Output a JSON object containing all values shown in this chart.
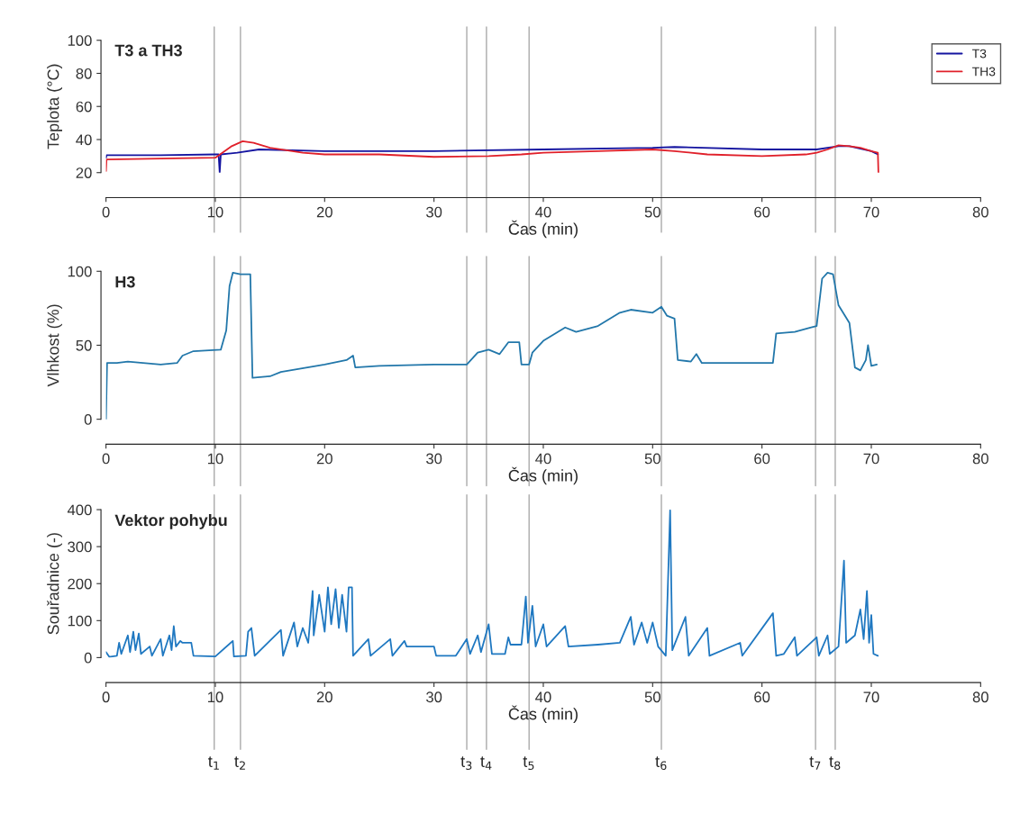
{
  "chart_data": [
    {
      "type": "line",
      "title": "T3 a TH3",
      "xlabel": "Čas (min)",
      "ylabel": "Teplota (°C)",
      "xlim": [
        0,
        80
      ],
      "xticks": [
        0,
        10,
        20,
        30,
        40,
        50,
        60,
        70,
        80
      ],
      "ylim": [
        20,
        100
      ],
      "yticks": [
        20,
        40,
        60,
        80,
        100
      ],
      "legend": "top right",
      "series": [
        {
          "name": "T3",
          "color": "#1414a0",
          "x": [
            0,
            0.05,
            5,
            10,
            10.3,
            10.4,
            10.5,
            12,
            14,
            20,
            30,
            40,
            50,
            52,
            60,
            65,
            67,
            68,
            70,
            70.6
          ],
          "values": [
            29,
            30.5,
            30.5,
            31,
            31,
            20,
            31,
            32,
            34,
            33,
            33,
            34,
            35,
            35.5,
            34,
            34,
            36,
            36,
            33,
            31
          ]
        },
        {
          "name": "TH3",
          "color": "#e0202a",
          "x": [
            0,
            0.05,
            10,
            11.5,
            12.5,
            13.5,
            15,
            18,
            20,
            25,
            30,
            35,
            38,
            40,
            45,
            50,
            52,
            55,
            60,
            64,
            65,
            66,
            67,
            68,
            69,
            70,
            70.6,
            70.65
          ],
          "values": [
            21,
            28,
            29,
            36,
            39,
            38,
            35,
            32,
            31,
            31,
            29.5,
            30,
            31,
            32,
            33,
            34,
            33,
            31,
            30,
            31,
            32,
            34,
            36.5,
            36,
            35,
            33,
            32,
            20
          ]
        }
      ],
      "ref_lines": [
        {
          "axis": "x",
          "value": 9.9,
          "color": "#aaaaaa"
        },
        {
          "axis": "x",
          "value": 12.3,
          "color": "#aaaaaa"
        },
        {
          "axis": "x",
          "value": 33.0,
          "color": "#aaaaaa"
        },
        {
          "axis": "x",
          "value": 34.8,
          "color": "#aaaaaa"
        },
        {
          "axis": "x",
          "value": 38.7,
          "color": "#aaaaaa"
        },
        {
          "axis": "x",
          "value": 50.8,
          "color": "#aaaaaa"
        },
        {
          "axis": "x",
          "value": 64.9,
          "color": "#aaaaaa"
        },
        {
          "axis": "x",
          "value": 66.7,
          "color": "#aaaaaa"
        }
      ]
    },
    {
      "type": "line",
      "title": "H3",
      "xlabel": "Čas (min)",
      "ylabel": "Vlhkost (%)",
      "xlim": [
        0,
        80
      ],
      "xticks": [
        0,
        10,
        20,
        30,
        40,
        50,
        60,
        70,
        80
      ],
      "ylim": [
        0,
        100
      ],
      "yticks": [
        0,
        50,
        100
      ],
      "series": [
        {
          "color": "#2277aa",
          "x": [
            0,
            0.1,
            1,
            2,
            5,
            6.5,
            7,
            8,
            10.5,
            11,
            11.3,
            11.6,
            12.3,
            13.2,
            13.4,
            15,
            16,
            20,
            22,
            22.6,
            22.8,
            25,
            30,
            33,
            34,
            35,
            36,
            36.8,
            37.8,
            38,
            38.7,
            39,
            40,
            42,
            43,
            45,
            47,
            48,
            50,
            50.8,
            51.3,
            52,
            52.3,
            53.5,
            54,
            54.5,
            57,
            61,
            61.3,
            63,
            64.5,
            65,
            65.5,
            66,
            66.5,
            67,
            68,
            68.5,
            69,
            69.5,
            69.7,
            70,
            70.5
          ],
          "values": [
            0,
            38,
            38,
            39,
            37,
            38,
            43,
            46,
            47,
            60,
            90,
            99,
            98,
            98,
            28,
            29,
            32,
            37,
            40,
            43,
            35,
            36,
            37,
            37,
            45,
            47,
            44,
            52,
            52,
            37,
            37,
            45,
            53,
            62,
            59,
            63,
            72,
            74,
            72,
            76,
            70,
            68,
            40,
            39,
            44,
            38,
            38,
            38,
            58,
            59,
            62,
            63,
            95,
            99,
            98,
            77,
            65,
            35,
            33,
            40,
            50,
            36,
            37
          ]
        }
      ],
      "ref_lines": [
        {
          "axis": "x",
          "value": 9.9,
          "color": "#aaaaaa"
        },
        {
          "axis": "x",
          "value": 12.3,
          "color": "#aaaaaa"
        },
        {
          "axis": "x",
          "value": 33.0,
          "color": "#aaaaaa"
        },
        {
          "axis": "x",
          "value": 34.8,
          "color": "#aaaaaa"
        },
        {
          "axis": "x",
          "value": 38.7,
          "color": "#aaaaaa"
        },
        {
          "axis": "x",
          "value": 50.8,
          "color": "#aaaaaa"
        },
        {
          "axis": "x",
          "value": 64.9,
          "color": "#aaaaaa"
        },
        {
          "axis": "x",
          "value": 66.7,
          "color": "#aaaaaa"
        }
      ]
    },
    {
      "type": "line",
      "title": "Vektor pohybu",
      "xlabel": "Čas (min)",
      "ylabel": "Souřadnice (-)",
      "xlim": [
        0,
        80
      ],
      "xticks": [
        0,
        10,
        20,
        30,
        40,
        50,
        60,
        70,
        80
      ],
      "ylim": [
        0,
        400
      ],
      "yticks": [
        0,
        100,
        200,
        300,
        400
      ],
      "series": [
        {
          "color": "#1f78c1",
          "x": [
            0,
            0.3,
            1,
            1.2,
            1.4,
            2,
            2.2,
            2.5,
            2.7,
            3,
            3.2,
            4,
            4.2,
            5,
            5.2,
            5.8,
            6,
            6.2,
            6.4,
            6.8,
            7,
            7.8,
            8,
            10,
            11.6,
            11.7,
            12.8,
            13,
            13.3,
            13.6,
            16,
            16.2,
            17.2,
            17.5,
            18,
            18.5,
            18.9,
            19,
            19.5,
            20,
            20.3,
            20.6,
            21,
            21.3,
            21.6,
            22,
            22.2,
            22.5,
            22.6,
            24,
            24.2,
            26,
            26.2,
            27.3,
            27.5,
            30,
            30.2,
            32,
            33,
            33.3,
            34,
            34.3,
            35,
            35.3,
            36.5,
            36.8,
            37,
            38,
            38.2,
            38.4,
            38.6,
            39,
            39.3,
            40,
            40.3,
            42,
            42.3,
            45,
            47,
            48,
            48.3,
            49,
            49.5,
            50,
            50.5,
            51.2,
            51.6,
            51.8,
            53,
            53.3,
            55,
            55.2,
            58,
            58.2,
            61,
            61.3,
            62,
            63,
            63.2,
            65,
            65.2,
            66,
            66.2,
            67,
            67.5,
            67.7,
            68.5,
            69,
            69.3,
            69.6,
            69.8,
            70,
            70.2,
            70.6
          ],
          "values": [
            15,
            2,
            5,
            40,
            10,
            60,
            15,
            70,
            20,
            65,
            10,
            30,
            5,
            50,
            5,
            60,
            20,
            85,
            30,
            45,
            40,
            40,
            5,
            3,
            45,
            3,
            5,
            70,
            80,
            5,
            75,
            5,
            95,
            30,
            80,
            40,
            180,
            60,
            170,
            70,
            190,
            90,
            185,
            80,
            170,
            70,
            190,
            190,
            5,
            50,
            5,
            50,
            5,
            45,
            30,
            30,
            5,
            5,
            50,
            10,
            60,
            15,
            90,
            10,
            10,
            55,
            35,
            35,
            100,
            165,
            40,
            140,
            30,
            90,
            30,
            85,
            30,
            35,
            40,
            110,
            35,
            95,
            40,
            95,
            30,
            5,
            398,
            20,
            110,
            5,
            80,
            5,
            40,
            5,
            120,
            5,
            10,
            55,
            5,
            55,
            5,
            60,
            10,
            30,
            262,
            40,
            60,
            130,
            50,
            180,
            40,
            115,
            10,
            5
          ]
        }
      ],
      "ref_lines": [
        {
          "axis": "x",
          "value": 9.9,
          "label": "t$_{1}$",
          "color": "#aaaaaa"
        },
        {
          "axis": "x",
          "value": 12.3,
          "label": "t$_{2}$",
          "color": "#aaaaaa"
        },
        {
          "axis": "x",
          "value": 33.0,
          "label": "t$_{3}$",
          "color": "#aaaaaa"
        },
        {
          "axis": "x",
          "value": 34.8,
          "label": "t$_{4}$",
          "color": "#aaaaaa"
        },
        {
          "axis": "x",
          "value": 38.7,
          "label": "t$_{5}$",
          "color": "#aaaaaa"
        },
        {
          "axis": "x",
          "value": 50.8,
          "label": "t$_{6}$",
          "color": "#aaaaaa"
        },
        {
          "axis": "x",
          "value": 64.9,
          "label": "t$_{7}$",
          "color": "#aaaaaa"
        },
        {
          "axis": "x",
          "value": 66.7,
          "label": "t$_{8}$",
          "color": "#aaaaaa"
        }
      ]
    }
  ]
}
